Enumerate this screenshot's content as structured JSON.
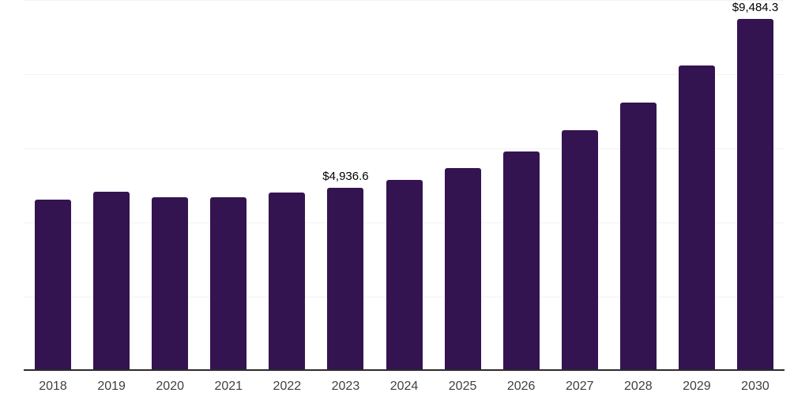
{
  "chart_data": {
    "type": "bar",
    "categories": [
      "2018",
      "2019",
      "2020",
      "2021",
      "2022",
      "2023",
      "2024",
      "2025",
      "2026",
      "2027",
      "2028",
      "2029",
      "2030"
    ],
    "values": [
      4615,
      4820,
      4675,
      4690,
      4810,
      4936.6,
      5150,
      5465,
      5920,
      6490,
      7235,
      8245,
      9484.3
    ],
    "data_labels": [
      "",
      "",
      "",
      "",
      "",
      "$4,936.6",
      "",
      "",
      "",
      "",
      "",
      "",
      "$9,484.3"
    ],
    "title": "",
    "xlabel": "",
    "ylabel": "",
    "ylim": [
      0,
      10000
    ],
    "grid": "horizontal",
    "gridline_values": [
      2000,
      4000,
      6000,
      8000,
      10000
    ],
    "legend": "none",
    "colors": {
      "bar": "#341450",
      "gridline": "#f2f2f2",
      "axis_line": "#2b2b2b",
      "tick_label": "#404040",
      "value_label": "#000000",
      "background": "#ffffff"
    }
  }
}
